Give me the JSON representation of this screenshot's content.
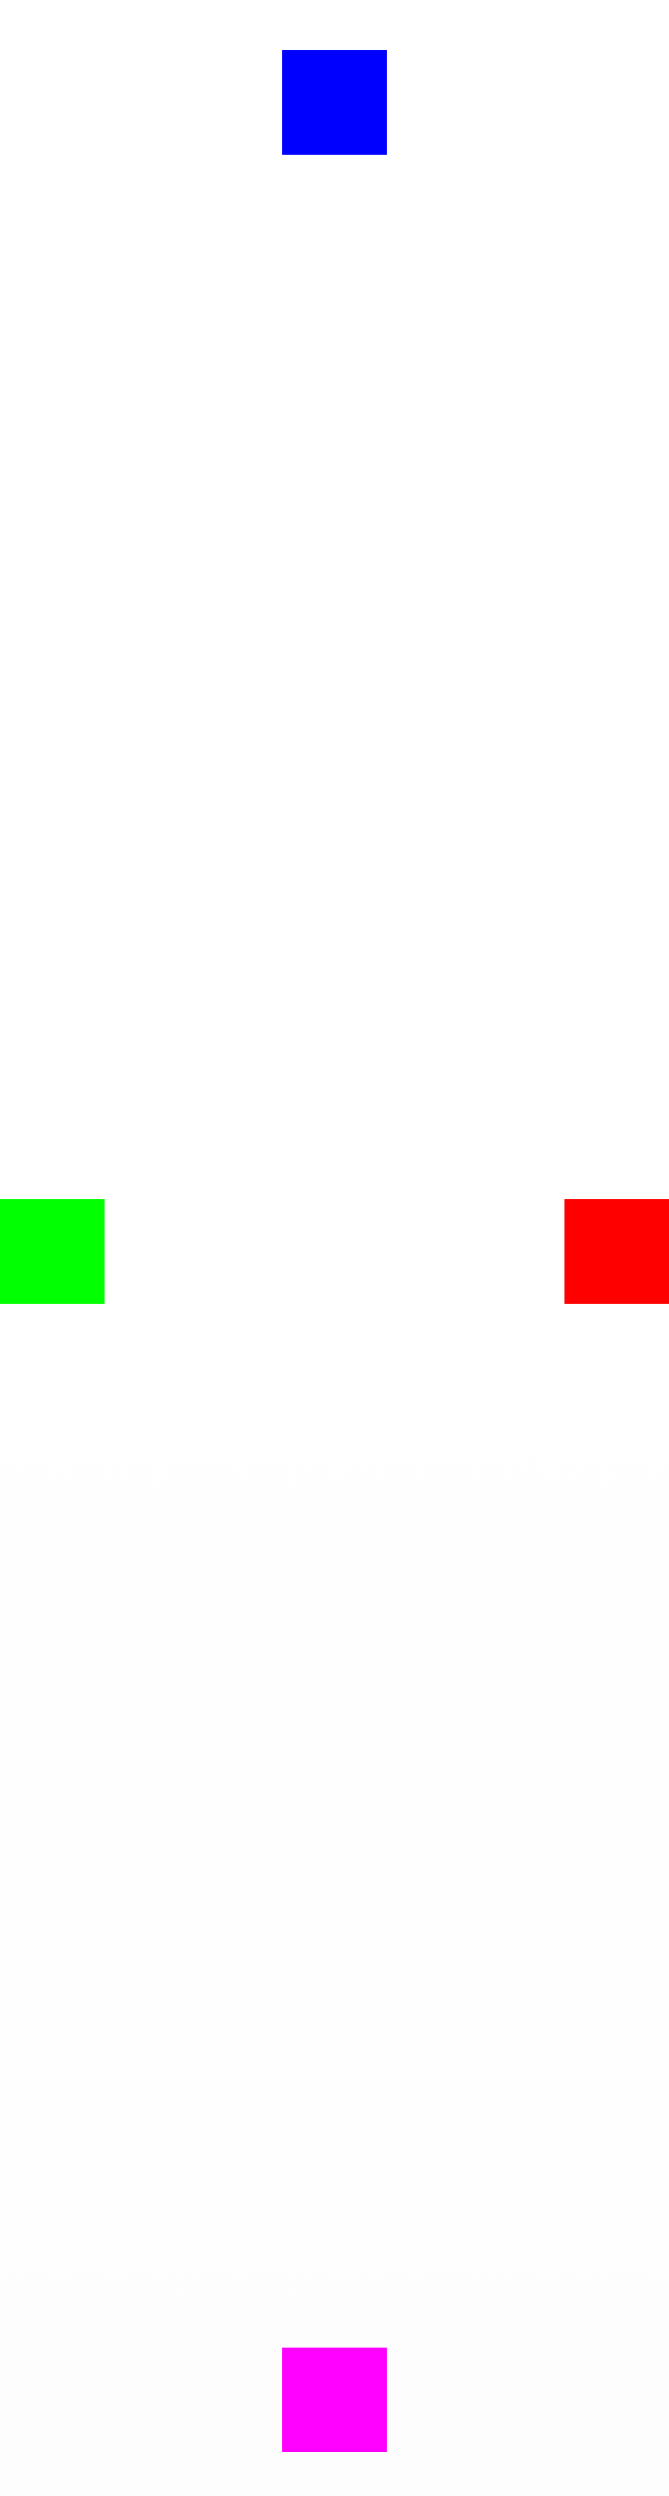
{
  "blocks": {
    "top": {
      "color": "#0000ff"
    },
    "left": {
      "color": "#00ff00"
    },
    "right": {
      "color": "#ff0000"
    },
    "bottom": {
      "color": "#ff00ff"
    }
  }
}
